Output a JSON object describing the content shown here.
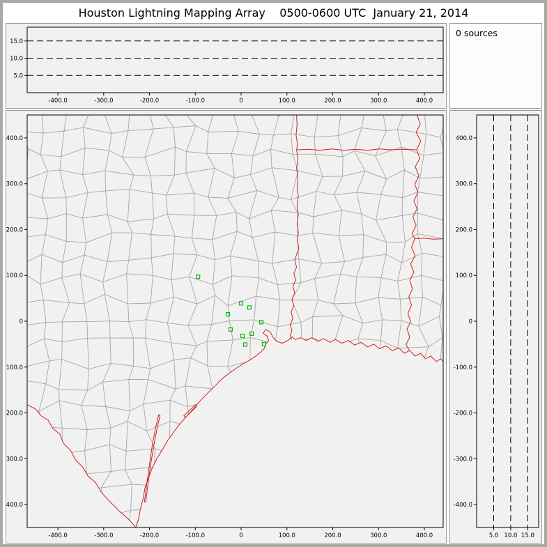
{
  "title": "Houston Lightning Mapping Array    0500-0600 UTC  January 21, 2014",
  "sources_panel": {
    "label": "0 sources"
  },
  "colors": {
    "frame": "#a9a9a9",
    "panel_border": "#999999",
    "plot_bg": "#f1f1f1",
    "sources_bg": "#fcfcfc",
    "dashed_line": "#000000",
    "state_border": "#cc2222",
    "coastline": "#cc2222",
    "county_border": "#a6a6a6",
    "station": "#00bb00",
    "text": "#000000"
  },
  "chart_data": [
    {
      "id": "alt-ew",
      "type": "scatter",
      "role": "altitude-vs-east-west",
      "points": [],
      "xlim": [
        -467,
        441
      ],
      "ylim": [
        0,
        19
      ],
      "xticks": {
        "values": [
          -400,
          -300,
          -200,
          -100,
          0,
          100,
          200,
          300,
          400
        ],
        "labels": [
          "-400.0",
          "-300.0",
          "-200.0",
          "-100.0",
          "0",
          "100.0",
          "200.0",
          "300.0",
          "400.0"
        ]
      },
      "yticks": {
        "values": [
          5,
          10,
          15
        ],
        "labels": [
          "5.0",
          "10.0",
          "15.0"
        ]
      },
      "dashed_lines": {
        "orientation": "horizontal",
        "values": [
          5,
          10,
          15
        ]
      },
      "grid": "dashed-altitude-reference",
      "legend": "none"
    },
    {
      "id": "map",
      "type": "scatter",
      "role": "plan-view-map",
      "points": [],
      "xlim": [
        -467,
        441
      ],
      "ylim": [
        -450,
        450
      ],
      "xticks": {
        "values": [
          -400,
          -300,
          -200,
          -100,
          0,
          100,
          200,
          300,
          400
        ],
        "labels": [
          "-400.0",
          "-300.0",
          "-200.0",
          "-100.0",
          "0",
          "100.0",
          "200.0",
          "300.0",
          "400.0"
        ]
      },
      "yticks": {
        "values": [
          400,
          300,
          200,
          100,
          0,
          -100,
          -200,
          -300,
          -400
        ],
        "labels": [
          "400.0",
          "300.0",
          "200.0",
          "100.0",
          "0",
          "-100.0",
          "-200.0",
          "-300.0",
          "-400.0"
        ]
      },
      "stations": [
        [
          -94,
          97
        ],
        [
          0,
          39
        ],
        [
          18,
          30
        ],
        [
          -29,
          15
        ],
        [
          -23,
          -18
        ],
        [
          3,
          -32
        ],
        [
          23,
          -27
        ],
        [
          44,
          -2
        ],
        [
          9,
          -51
        ],
        [
          50,
          -50
        ]
      ],
      "county_grid": {
        "seed": 20140121,
        "spacing": 46,
        "jitter": 13
      },
      "geography": {
        "rio_grande": [
          [
            -467,
            -182
          ],
          [
            -448,
            -192
          ],
          [
            -437,
            -206
          ],
          [
            -421,
            -216
          ],
          [
            -411,
            -234
          ],
          [
            -396,
            -246
          ],
          [
            -388,
            -266
          ],
          [
            -372,
            -282
          ],
          [
            -362,
            -302
          ],
          [
            -346,
            -318
          ],
          [
            -334,
            -338
          ],
          [
            -318,
            -352
          ],
          [
            -306,
            -372
          ],
          [
            -292,
            -388
          ],
          [
            -278,
            -402
          ],
          [
            -264,
            -416
          ],
          [
            -250,
            -428
          ],
          [
            -238,
            -440
          ],
          [
            -230,
            -450
          ]
        ],
        "coastline": [
          [
            -230,
            -450
          ],
          [
            -224,
            -432
          ],
          [
            -220,
            -410
          ],
          [
            -214,
            -388
          ],
          [
            -210,
            -364
          ],
          [
            -202,
            -342
          ],
          [
            -194,
            -320
          ],
          [
            -184,
            -300
          ],
          [
            -172,
            -280
          ],
          [
            -160,
            -260
          ],
          [
            -146,
            -240
          ],
          [
            -132,
            -222
          ],
          [
            -116,
            -204
          ],
          [
            -100,
            -186
          ],
          [
            -86,
            -170
          ],
          [
            -70,
            -154
          ],
          [
            -54,
            -138
          ],
          [
            -40,
            -124
          ],
          [
            -24,
            -112
          ],
          [
            -8,
            -101
          ],
          [
            6,
            -92
          ],
          [
            20,
            -84
          ],
          [
            32,
            -76
          ],
          [
            42,
            -68
          ],
          [
            50,
            -60
          ],
          [
            54,
            -50
          ],
          [
            60,
            -42
          ],
          [
            56,
            -32
          ],
          [
            48,
            -26
          ],
          [
            54,
            -18
          ],
          [
            64,
            -24
          ],
          [
            70,
            -36
          ],
          [
            78,
            -44
          ],
          [
            90,
            -48
          ],
          [
            102,
            -42
          ],
          [
            112,
            -34
          ],
          [
            118,
            -40
          ],
          [
            130,
            -36
          ],
          [
            142,
            -42
          ],
          [
            154,
            -36
          ],
          [
            168,
            -44
          ],
          [
            180,
            -38
          ],
          [
            194,
            -46
          ],
          [
            206,
            -40
          ],
          [
            220,
            -48
          ],
          [
            234,
            -42
          ],
          [
            248,
            -52
          ],
          [
            262,
            -46
          ],
          [
            276,
            -56
          ],
          [
            290,
            -50
          ],
          [
            302,
            -60
          ],
          [
            316,
            -54
          ],
          [
            330,
            -64
          ],
          [
            344,
            -58
          ],
          [
            356,
            -70
          ],
          [
            368,
            -64
          ],
          [
            380,
            -76
          ],
          [
            392,
            -70
          ],
          [
            402,
            -82
          ],
          [
            414,
            -76
          ],
          [
            426,
            -88
          ],
          [
            436,
            -82
          ],
          [
            441,
            -88
          ]
        ],
        "islands": [
          [
            [
              -208,
              -394
            ],
            [
              -203,
              -352
            ],
            [
              -197,
              -310
            ],
            [
              -190,
              -268
            ],
            [
              -183,
              -232
            ],
            [
              -177,
              -206
            ],
            [
              -180,
              -204
            ],
            [
              -187,
              -234
            ],
            [
              -194,
              -271
            ],
            [
              -200,
              -313
            ],
            [
              -206,
              -355
            ],
            [
              -211,
              -394
            ]
          ],
          [
            [
              -122,
              -210
            ],
            [
              -97,
              -186
            ],
            [
              -100,
              -182
            ],
            [
              -125,
              -206
            ]
          ]
        ],
        "state_borders": [
          [
            [
              121,
              450
            ],
            [
              122,
              428
            ],
            [
              120,
              406
            ],
            [
              123,
              386
            ],
            [
              121,
              374
            ],
            [
              124,
              354
            ],
            [
              121,
              334
            ],
            [
              124,
              312
            ],
            [
              122,
              292
            ],
            [
              125,
              272
            ],
            [
              122,
              252
            ],
            [
              125,
              232
            ],
            [
              122,
              212
            ],
            [
              125,
              194
            ],
            [
              123,
              176
            ],
            [
              126,
              158
            ],
            [
              121,
              146
            ],
            [
              117,
              132
            ],
            [
              121,
              118
            ],
            [
              115,
              104
            ],
            [
              119,
              90
            ],
            [
              113,
              76
            ],
            [
              117,
              62
            ],
            [
              111,
              48
            ],
            [
              115,
              34
            ],
            [
              109,
              20
            ],
            [
              113,
              6
            ],
            [
              107,
              -8
            ],
            [
              111,
              -20
            ],
            [
              107,
              -32
            ],
            [
              110,
              -40
            ]
          ],
          [
            [
              121,
              374
            ],
            [
              146,
              375
            ],
            [
              172,
              373
            ],
            [
              198,
              376
            ],
            [
              224,
              373
            ],
            [
              250,
              375
            ],
            [
              276,
              373
            ],
            [
              302,
              376
            ],
            [
              328,
              374
            ],
            [
              354,
              375
            ],
            [
              383,
              374
            ]
          ],
          [
            [
              384,
              450
            ],
            [
              391,
              430
            ],
            [
              382,
              412
            ],
            [
              392,
              393
            ],
            [
              383,
              374
            ],
            [
              390,
              355
            ],
            [
              380,
              337
            ],
            [
              388,
              317
            ],
            [
              379,
              299
            ],
            [
              386,
              281
            ],
            [
              377,
              263
            ],
            [
              384,
              245
            ],
            [
              375,
              227
            ],
            [
              382,
              209
            ],
            [
              373,
              191
            ],
            [
              379,
              180
            ],
            [
              372,
              161
            ],
            [
              380,
              143
            ],
            [
              370,
              125
            ],
            [
              377,
              107
            ],
            [
              368,
              89
            ],
            [
              374,
              71
            ],
            [
              366,
              53
            ],
            [
              372,
              35
            ],
            [
              364,
              17
            ],
            [
              370,
              -1
            ],
            [
              362,
              -17
            ],
            [
              368,
              -35
            ],
            [
              360,
              -51
            ],
            [
              367,
              -63
            ]
          ],
          [
            [
              379,
              180
            ],
            [
              400,
              181
            ],
            [
              420,
              179
            ],
            [
              441,
              180
            ]
          ]
        ]
      },
      "legend": "none"
    },
    {
      "id": "alt-ns",
      "type": "scatter",
      "role": "altitude-vs-north-south",
      "points": [],
      "xlim": [
        0,
        18.2
      ],
      "ylim": [
        -450,
        450
      ],
      "xticks": {
        "values": [
          5,
          10,
          15
        ],
        "labels": [
          "5.0",
          "10.0",
          "15.0"
        ]
      },
      "yticks": {
        "values": [
          400,
          300,
          200,
          100,
          0,
          -100,
          -200,
          -300,
          -400
        ],
        "labels": [
          "400.0",
          "300.0",
          "200.0",
          "100.0",
          "0",
          "-100.0",
          "-200.0",
          "-300.0",
          "-400.0"
        ]
      },
      "dashed_lines": {
        "orientation": "vertical",
        "values": [
          5,
          10,
          15
        ]
      },
      "grid": "dashed-altitude-reference",
      "legend": "none"
    }
  ]
}
